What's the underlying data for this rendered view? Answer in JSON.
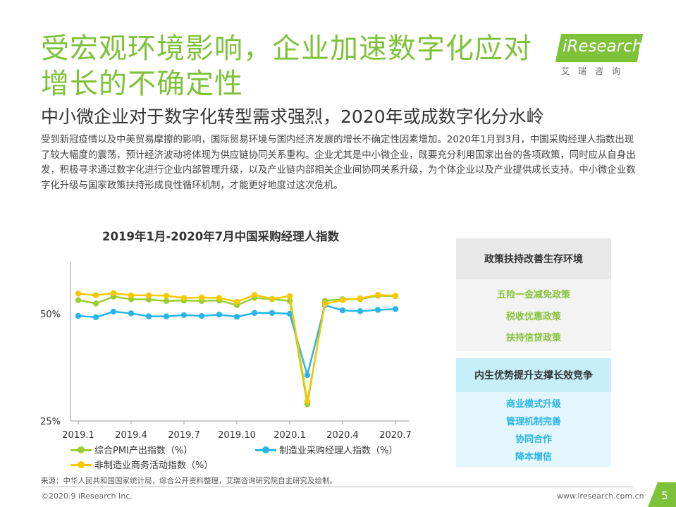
{
  "title": "受宏观环境影响，企业加速数字化应对增长的不确定性",
  "subtitle": "中小微企业对于数字化转型需求强烈，2020年或成数字化分水岭",
  "body_text": "受到新冠疫情以及中美贸易摩擦的影响，国际贸易环境与国内经济发展的增长不确定性因素增加。2020年1月到3月，中国采购经理人指数出现了较大幅度的震荡，预计经济波动将体现为供应链协同关系重构。企业尤其是中小微企业，既要充分利用国家出台的各项政策，同时应从自身出发，积极寻求通过数字化进行企业内部管理升级，以及产业链内部相关企业间协同关系升级，为个体企业以及产业提供成长支持。中小微企业数字化升级与国家政策扶持形成良性循环机制，才能更好地度过这次危机。",
  "logo": {
    "text": "iResearch",
    "sub": "艾瑞咨询",
    "color": "#7ec23a"
  },
  "colors": {
    "accent": "#7ec23a",
    "series1": "#9acd32",
    "series2": "#2ab5e8",
    "series3": "#f7c800"
  },
  "panels": [
    {
      "heading": "政策扶持改善生存环境",
      "items": [
        "五险一金减免政策",
        "税收优惠政策",
        "扶持信贷政策"
      ],
      "head_bg": "#e8e8e8",
      "body_bg": "#f3f3f3",
      "item_color": "#86c33b"
    },
    {
      "heading": "内生优势提升支撑长效竞争",
      "items": [
        "商业模式升级",
        "管理机制完善",
        "协同合作",
        "降本增信"
      ],
      "head_bg": "#c6eefb",
      "body_bg": "#e3f6fd",
      "item_color": "#2ab5e8"
    }
  ],
  "chart_data": {
    "type": "line",
    "title": "2019年1月-2020年7月中国采购经理人指数",
    "x": [
      "2019.1",
      "2019.2",
      "2019.3",
      "2019.4",
      "2019.5",
      "2019.6",
      "2019.7",
      "2019.8",
      "2019.9",
      "2019.10",
      "2019.11",
      "2019.12",
      "2020.1",
      "2020.2",
      "2020.3",
      "2020.4",
      "2020.5",
      "2020.6",
      "2020.7"
    ],
    "tick_labels": [
      "2019.1",
      "2019.4",
      "2019.7",
      "2019.10",
      "2020.1",
      "2020.4",
      "2020.7"
    ],
    "tick_indices": [
      0,
      3,
      6,
      9,
      12,
      15,
      18
    ],
    "y_tick_labels": [
      "50%",
      "25%"
    ],
    "y_tick_values": [
      50,
      25
    ],
    "ylim": [
      25,
      62
    ],
    "legend_position": "bottom",
    "series": [
      {
        "name": "综合PMI产出指数（%）",
        "color": "#9acd32",
        "values": [
          53.2,
          52.4,
          54.0,
          53.4,
          53.3,
          53.0,
          53.1,
          53.0,
          53.1,
          52.0,
          53.7,
          53.4,
          53.0,
          28.9,
          53.0,
          53.4,
          53.4,
          54.2,
          54.1
        ]
      },
      {
        "name": "制造业采购经理人指数（%）",
        "color": "#2ab5e8",
        "values": [
          49.5,
          49.2,
          50.5,
          50.1,
          49.4,
          49.4,
          49.7,
          49.5,
          49.8,
          49.3,
          50.2,
          50.2,
          50.0,
          35.7,
          52.0,
          50.8,
          50.6,
          50.9,
          51.1
        ]
      },
      {
        "name": "非制造业商务活动指数（%）",
        "color": "#f7c800",
        "values": [
          54.7,
          54.3,
          54.8,
          54.3,
          54.3,
          54.2,
          53.7,
          53.8,
          53.7,
          52.8,
          54.4,
          53.5,
          54.1,
          29.6,
          52.3,
          53.2,
          53.6,
          54.4,
          54.2
        ]
      }
    ]
  },
  "source": "来源：中华人民共和国国家统计局，综合公开资料整理，艾瑞咨询研究院自主研究及绘制。",
  "footer_left": "©2020.9 iResearch Inc.",
  "footer_right": "www.iresearch.com.cn",
  "page_number": "5"
}
